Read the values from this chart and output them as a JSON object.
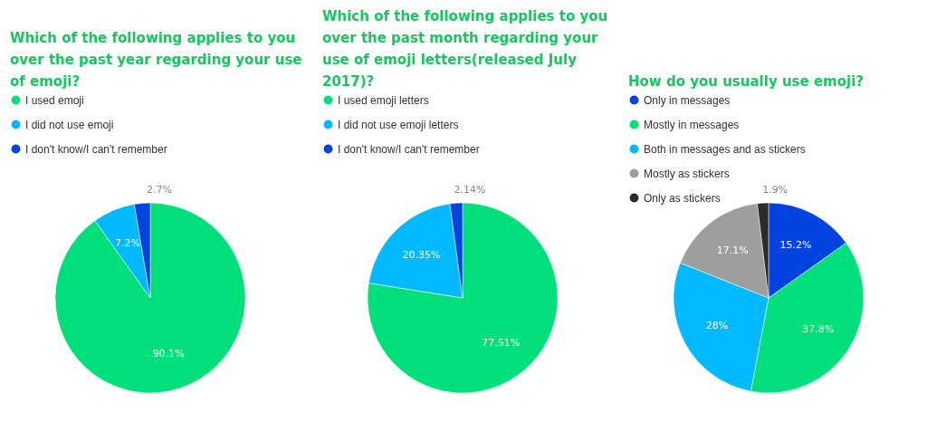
{
  "chart_data": [
    {
      "type": "pie",
      "title": "Which of the following applies to you over the past year regarding your use of emoji?",
      "categories": [
        "I used emoji",
        "I did not use emoji",
        "I don't know/I can't remember"
      ],
      "values": [
        90.1,
        7.2,
        2.7
      ],
      "colors": [
        "#00e07a",
        "#00b9ff",
        "#0043e0"
      ],
      "value_labels": [
        "90.1%",
        "7.2%",
        "2.7%"
      ],
      "legend": "top left"
    },
    {
      "type": "pie",
      "title": "Which of the following applies to you over the past month regarding your use of emoji letters(released July 2017)?",
      "categories": [
        "I used emoji letters",
        "I did not use emoji letters",
        "I don't know/I can't remember"
      ],
      "values": [
        77.51,
        20.35,
        2.14
      ],
      "colors": [
        "#00e07a",
        "#00b9ff",
        "#0043e0"
      ],
      "value_labels": [
        "77.51%",
        "20.35%",
        "2.14%"
      ],
      "legend": "top left"
    },
    {
      "type": "pie",
      "title": "How do you usually use emoji?",
      "categories": [
        "Only in messages",
        "Mostly in messages",
        "Both in messages and as stickers",
        "Mostly as stickers",
        "Only as stickers"
      ],
      "values": [
        15.2,
        37.8,
        28,
        17.1,
        1.9
      ],
      "colors": [
        "#0043e0",
        "#00e07a",
        "#00b9ff",
        "#9e9e9e",
        "#2b2b2b"
      ],
      "value_labels": [
        "15.2%",
        "37.8%",
        "28%",
        "17.1%",
        "1.9%"
      ],
      "legend": "top left"
    }
  ]
}
